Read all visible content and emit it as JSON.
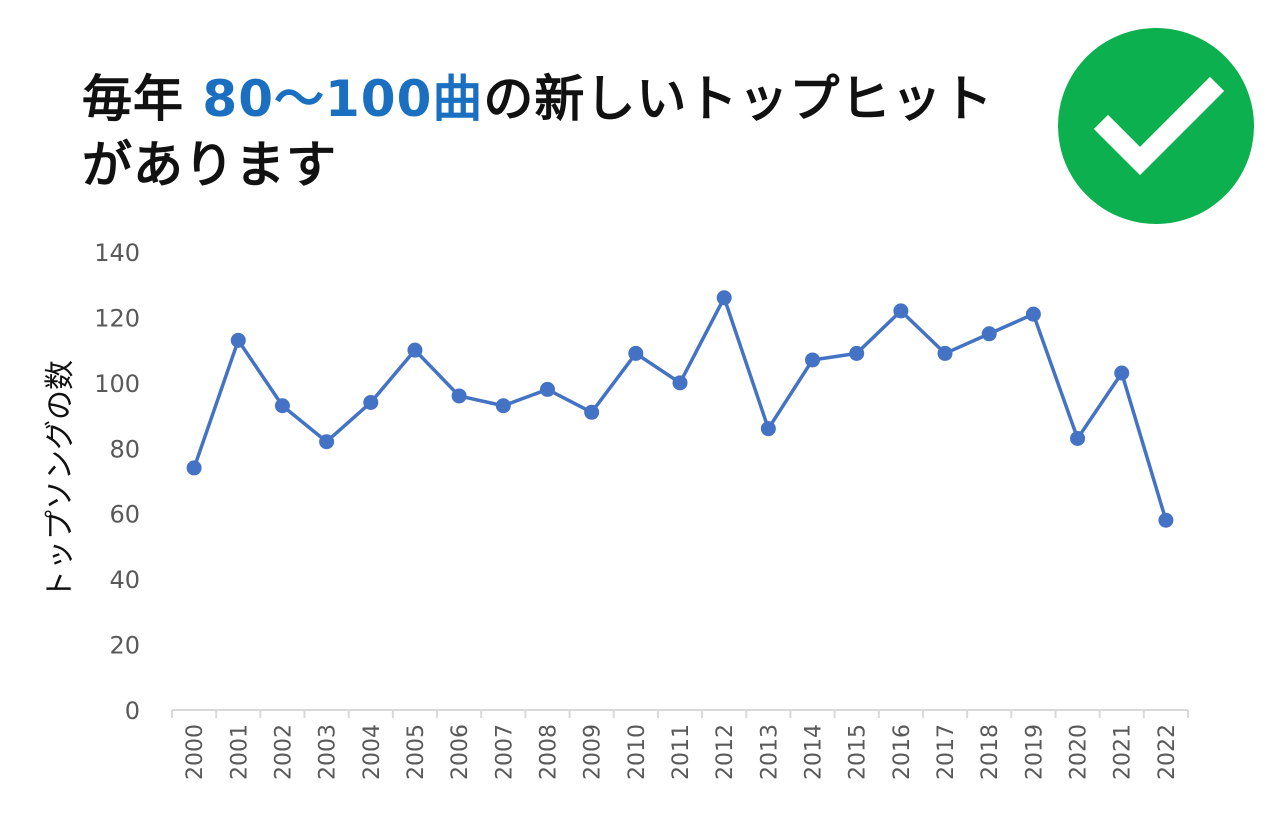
{
  "headline": {
    "prefix": "毎年 ",
    "highlight": "80〜100曲",
    "suffix": "の新しいトップヒットがあります"
  },
  "badge": {
    "icon": "check-icon",
    "color": "#0db04f"
  },
  "colors": {
    "accent": "#1a6fc0",
    "series": "#4472c4",
    "axis": "#d9d9d9",
    "tick_text": "#595959"
  },
  "chart_data": {
    "type": "line",
    "title": "",
    "xlabel": "",
    "ylabel": "トップソングの数",
    "ylim": [
      0,
      140
    ],
    "yticks": [
      0,
      20,
      40,
      60,
      80,
      100,
      120,
      140
    ],
    "grid": false,
    "legend": "none",
    "categories": [
      "2000",
      "2001",
      "2002",
      "2003",
      "2004",
      "2005",
      "2006",
      "2007",
      "2008",
      "2009",
      "2010",
      "2011",
      "2012",
      "2013",
      "2014",
      "2015",
      "2016",
      "2017",
      "2018",
      "2019",
      "2020",
      "2021",
      "2022"
    ],
    "series": [
      {
        "values": [
          74,
          113,
          93,
          82,
          94,
          110,
          96,
          93,
          98,
          91,
          109,
          100,
          126,
          86,
          107,
          109,
          122,
          109,
          115,
          121,
          83,
          103,
          58
        ]
      }
    ]
  }
}
